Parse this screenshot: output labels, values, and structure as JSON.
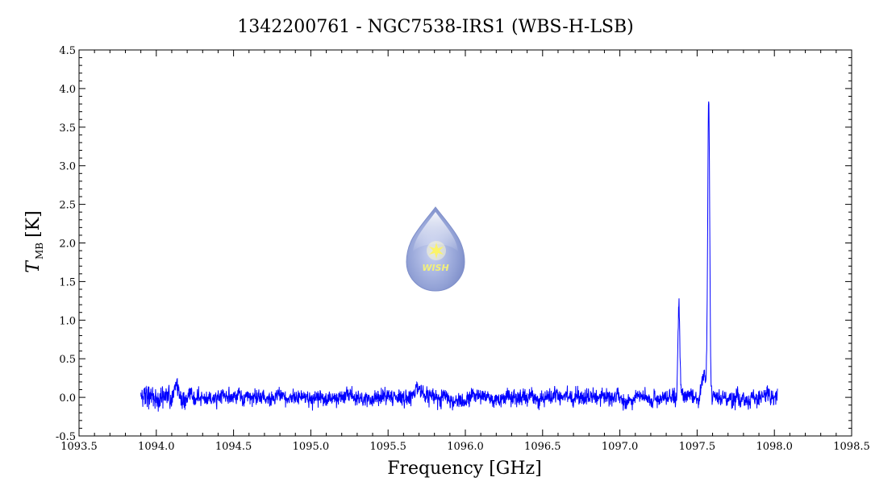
{
  "chart_data": {
    "type": "line",
    "title": "1342200761 - NGC7538-IRS1 (WBS-H-LSB)",
    "xlabel": "Frequency [GHz]",
    "ylabel_main": "T",
    "ylabel_sub": "MB",
    "ylabel_unit": "[K]",
    "xlim": [
      1093.5,
      1098.5
    ],
    "ylim": [
      -0.5,
      4.5
    ],
    "xticks": [
      1093.5,
      1094.0,
      1094.5,
      1095.0,
      1095.5,
      1096.0,
      1096.5,
      1097.0,
      1097.5,
      1098.0,
      1098.5
    ],
    "xtick_labels": [
      "1093.5",
      "1094.0",
      "1094.5",
      "1095.0",
      "1095.5",
      "1096.0",
      "1096.5",
      "1097.0",
      "1097.5",
      "1098.0",
      "1098.5"
    ],
    "yticks": [
      -0.5,
      0.0,
      0.5,
      1.0,
      1.5,
      2.0,
      2.5,
      3.0,
      3.5,
      4.0,
      4.5
    ],
    "ytick_labels": [
      "-0.5",
      "0.0",
      "0.5",
      "1.0",
      "1.5",
      "2.0",
      "2.5",
      "3.0",
      "3.5",
      "4.0",
      "4.5"
    ],
    "grid": false,
    "series": [
      {
        "color": "#0000ff",
        "x_range": [
          1093.9,
          1098.02
        ],
        "noise_rms": 0.05,
        "features": [
          {
            "center": 1094.13,
            "peak": 0.13,
            "width": 0.01
          },
          {
            "center": 1095.72,
            "peak": 0.08,
            "width": 0.03
          },
          {
            "center": 1097.382,
            "peak": 1.15,
            "width": 0.006
          },
          {
            "center": 1097.545,
            "peak": 0.3,
            "width": 0.012
          },
          {
            "center": 1097.575,
            "peak": 3.85,
            "width": 0.0065
          },
          {
            "center": 1097.76,
            "peak": 0.15,
            "width": 0.006
          }
        ]
      }
    ]
  },
  "logo": {
    "text": "WISH"
  }
}
